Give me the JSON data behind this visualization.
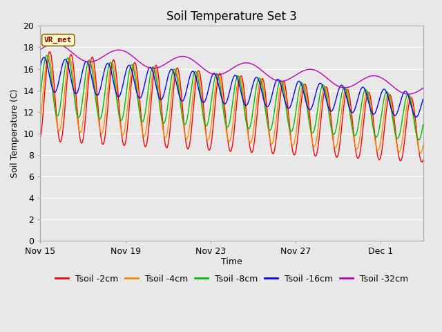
{
  "title": "Soil Temperature Set 3",
  "xlabel": "Time",
  "ylabel": "Soil Temperature (C)",
  "ylim": [
    0,
    20
  ],
  "yticks": [
    0,
    2,
    4,
    6,
    8,
    10,
    12,
    14,
    16,
    18,
    20
  ],
  "xtick_labels": [
    "Nov 15",
    "Nov 19",
    "Nov 23",
    "Nov 27",
    "Dec 1"
  ],
  "xtick_positions": [
    0,
    4,
    8,
    12,
    16
  ],
  "annotation_text": "VR_met",
  "annotation_color": "#8B0000",
  "annotation_bg": "#FFFFCC",
  "annotation_edge": "#8B6914",
  "series_colors": [
    "#FF0000",
    "#FF8C00",
    "#00BB00",
    "#0000FF",
    "#BB00BB"
  ],
  "series_labels": [
    "Tsoil -2cm",
    "Tsoil -4cm",
    "Tsoil -8cm",
    "Tsoil -16cm",
    "Tsoil -32cm"
  ],
  "fig_bg_color": "#E8E8E8",
  "plot_bg_color": "#E8E8E8",
  "grid_color": "#FFFFFF",
  "title_fontsize": 12,
  "axis_fontsize": 9,
  "legend_fontsize": 9,
  "xlim": [
    0,
    18
  ]
}
